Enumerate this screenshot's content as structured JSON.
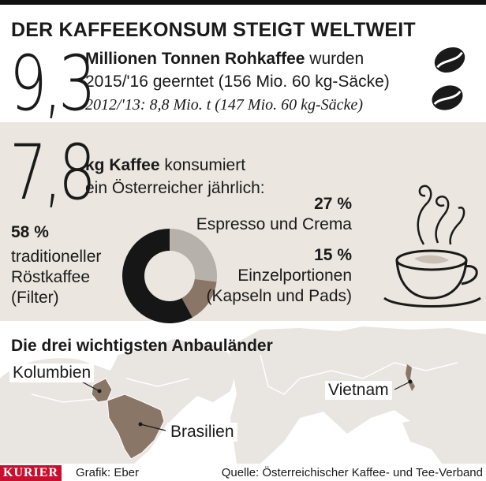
{
  "title": "DER KAFFEEKONSUM STEIGT WELTWEIT",
  "harvest": {
    "number": "9,3",
    "bold": "Millionen Tonnen Rohkaffee",
    "rest": " wurden",
    "line2": "2015/'16 geerntet (156 Mio. 60 kg-Säcke)",
    "line3": "2012/'13: 8,8 Mio. t (147 Mio. 60 kg-Säcke)"
  },
  "consumption": {
    "number": "7,8",
    "bold": "kg Kaffee",
    "rest": " konsumiert",
    "line2": "ein Österreicher jährlich:"
  },
  "chart_data": {
    "type": "pie",
    "labels": [
      "traditioneller Röstkaffee (Filter)",
      "Espresso und Crema",
      "Einzelportionen (Kapseln und Pads)"
    ],
    "values": [
      58,
      27,
      15
    ],
    "percent_labels": [
      "58 %",
      "27 %",
      "15 %"
    ],
    "colors": [
      "#161616",
      "#b7b1ab",
      "#8a7667"
    ]
  },
  "segments": {
    "filter": {
      "pct": "58 %",
      "l1": "traditioneller",
      "l2": "Röstkaffee",
      "l3": "(Filter)"
    },
    "espresso": {
      "pct": "27 %",
      "l1": "Espresso und Crema"
    },
    "portions": {
      "pct": "15 %",
      "l1": "Einzelportionen",
      "l2": "(Kapseln und Pads)"
    }
  },
  "countries": {
    "heading": "Die drei wichtigsten Anbauländer",
    "c1": "Kolumbien",
    "c2": "Brasilien",
    "c3": "Vietnam"
  },
  "footer": {
    "brand": "KURIER",
    "credit": "Grafik: Eber",
    "source": "Quelle: Österreichischer Kaffee- und Tee-Verband"
  },
  "colors": {
    "band": "#ebe6df",
    "map_land": "#e9e5e1",
    "highlight": "#8a7667",
    "brand": "#c8102e"
  }
}
